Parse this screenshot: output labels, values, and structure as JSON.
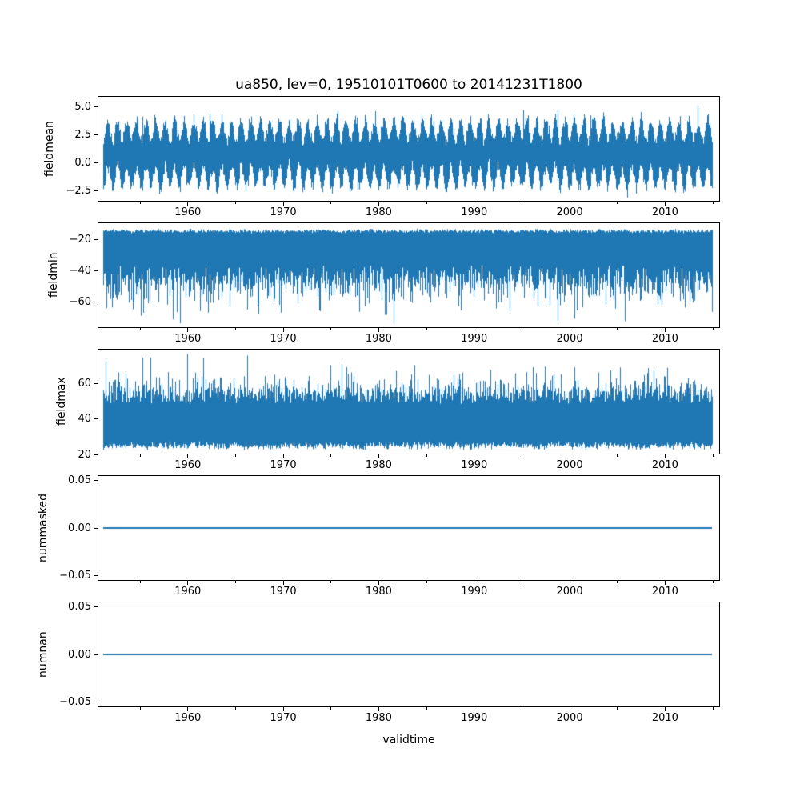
{
  "figure": {
    "title": "ua850, lev=0, 19510101T0600 to 20141231T1800",
    "line_color": "#1f77b4",
    "background": "#ffffff",
    "axes_color": "#000000"
  },
  "x_axis": {
    "label": "validtime",
    "lim": [
      1950.55,
      2015.75
    ],
    "data_range": [
      1951.0,
      2015.0
    ],
    "major_ticks": [
      {
        "year": 1960,
        "label": "1960"
      },
      {
        "year": 1970,
        "label": "1970"
      },
      {
        "year": 1980,
        "label": "1980"
      },
      {
        "year": 1990,
        "label": "1990"
      },
      {
        "year": 2000,
        "label": "2000"
      },
      {
        "year": 2010,
        "label": "2010"
      }
    ],
    "minor_ticks": [
      1955,
      1965,
      1975,
      1985,
      1995,
      2005,
      2015
    ]
  },
  "chart_data": {
    "type": "line",
    "title": "ua850, lev=0, 19510101T0600 to 20141231T1800",
    "xlabel": "validtime",
    "x_range_years": [
      1951.0,
      2015.0
    ],
    "sampling": "6-hourly values 19510101T0600 to 20141231T1800 (~93440 points per series, drawn as dense band; envelopes estimated from pixels)",
    "grid": false,
    "legend": "none",
    "subplots": [
      {
        "name": "fieldmean",
        "ylabel": "fieldmean",
        "ylim": [
          -3.43,
          5.93
        ],
        "yticks": [
          {
            "v": 5.0,
            "label": "5.0"
          },
          {
            "v": 2.5,
            "label": "2.5"
          },
          {
            "v": 0.0,
            "label": "0.0"
          },
          {
            "v": -2.5,
            "label": "−2.5"
          }
        ],
        "stats": {
          "approx_mean": 0.75,
          "approx_min": -3.3,
          "approx_max": 5.5,
          "seasonal_cycle": true
        },
        "synth": {
          "kind": "seasonal-band",
          "seed": 101,
          "center_base": 0.75,
          "seasonal_amp": 0.95,
          "seasonal_phase": 0.28,
          "up_base": 1.45,
          "up_rand": 1.5,
          "dn_base": 1.35,
          "dn_rand": 1.45,
          "spike_prob": 0.012,
          "spike_min": 0.8,
          "spike_rand": 1.2,
          "clip_lo": -3.35,
          "clip_hi": 5.55,
          "smooth_freq": 9
        }
      },
      {
        "name": "fieldmin",
        "ylabel": "fieldmin",
        "ylim": [
          -77.0,
          -8.8
        ],
        "yticks": [
          {
            "v": -20,
            "label": "−20"
          },
          {
            "v": -40,
            "label": "−40"
          },
          {
            "v": -60,
            "label": "−60"
          }
        ],
        "stats": {
          "approx_max": -12.5,
          "typical_band": [
            -45,
            -13
          ],
          "approx_min": -74.5
        },
        "synth": {
          "kind": "spike-down",
          "seed": 202,
          "top_base": -12.3,
          "top_rand": 3.2,
          "lo_base": -36,
          "lo_r1": 12,
          "lo_r3": 14,
          "spike_prob": 0.05,
          "spike_min": 6,
          "spike_rand": 14,
          "clip_lo": -74.5,
          "smooth_freq": 7
        }
      },
      {
        "name": "fieldmax",
        "ylabel": "fieldmax",
        "ylim": [
          20.3,
          79.3
        ],
        "yticks": [
          {
            "v": 60,
            "label": "60"
          },
          {
            "v": 40,
            "label": "40"
          },
          {
            "v": 20,
            "label": "20"
          }
        ],
        "stats": {
          "approx_min": 21.5,
          "typical_band": [
            25,
            54
          ],
          "approx_max": 76.5
        },
        "synth": {
          "kind": "spike-up",
          "seed": 303,
          "lo_base": 27.5,
          "lo_rand": 5.5,
          "hi_base": 48.5,
          "hi_r1": 9,
          "hi_r3": 10,
          "spike_prob": 0.05,
          "spike_min": 5,
          "spike_rand": 13,
          "clip_hi": 76.8,
          "smooth_freq": 7
        }
      },
      {
        "name": "nummasked",
        "ylabel": "nummasked",
        "ylim": [
          -0.0557,
          0.0557
        ],
        "yticks": [
          {
            "v": 0.05,
            "label": "0.05"
          },
          {
            "v": 0.0,
            "label": "0.00"
          },
          {
            "v": -0.05,
            "label": "−0.05"
          }
        ],
        "stats": {
          "constant_value": 0.0
        },
        "synth": {
          "kind": "constant",
          "seed": 404,
          "value": 0.0
        }
      },
      {
        "name": "numnan",
        "ylabel": "numnan",
        "ylim": [
          -0.0557,
          0.0557
        ],
        "yticks": [
          {
            "v": 0.05,
            "label": "0.05"
          },
          {
            "v": 0.0,
            "label": "0.00"
          },
          {
            "v": -0.05,
            "label": "−0.05"
          }
        ],
        "stats": {
          "constant_value": 0.0
        },
        "synth": {
          "kind": "constant",
          "seed": 505,
          "value": 0.0
        }
      }
    ]
  }
}
